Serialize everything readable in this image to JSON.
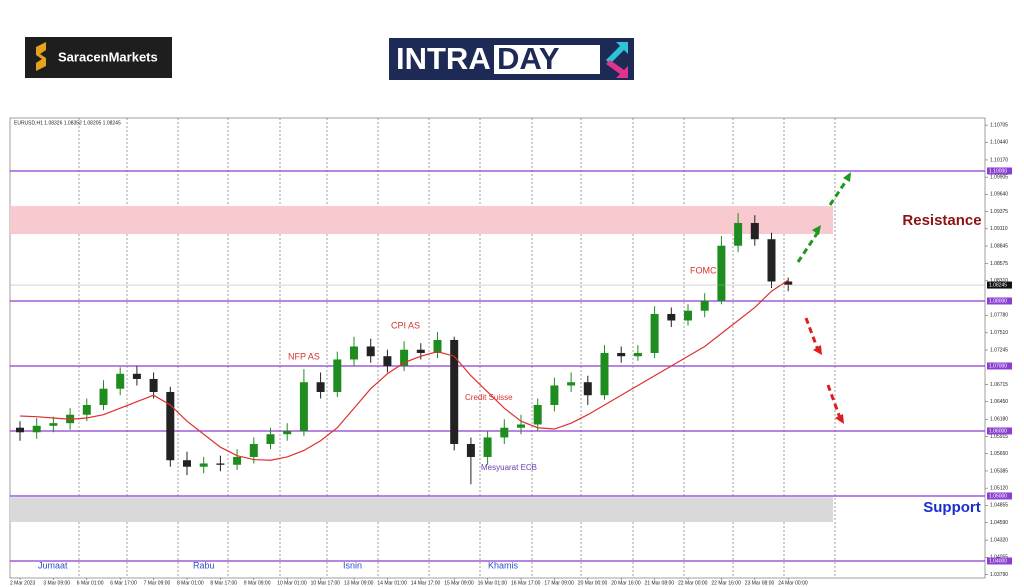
{
  "header": {
    "brand": "SaracenMarkets",
    "logo_part1": "INTRA",
    "logo_part2": "DAY"
  },
  "chart_data": {
    "type": "candlestick",
    "symbol_header": "EURUSD,H1 1.08326 1.08352 1.08205 1.08245",
    "categories": [
      "2 Mar 2023",
      null,
      "3 Mar 09:00",
      null,
      "6 Mar 01:00",
      null,
      "6 Mar 17:00",
      null,
      "7 Mar 09:00",
      null,
      "8 Mar 01:00",
      null,
      "8 Mar 17:00",
      null,
      "9 Mar 09:00",
      null,
      "10 Mar 01:00",
      null,
      "10 Mar 17:00",
      null,
      "13 Mar 09:00",
      null,
      "14 Mar 01:00",
      null,
      "14 Mar 17:00",
      null,
      "15 Mar 09:00",
      null,
      "16 Mar 01:00",
      null,
      "16 Mar 17:00",
      null,
      "17 Mar 09:00",
      null,
      "20 Mar 00:00",
      null,
      "20 Mar 16:00",
      null,
      "21 Mar 08:00",
      null,
      "22 Mar 00:00",
      null,
      "22 Mar 16:00",
      null,
      "23 Mar 08:00",
      null,
      "24 Mar 00:00"
    ],
    "open": [
      1.0605,
      1.0598,
      1.0608,
      1.0612,
      1.0625,
      1.064,
      1.0665,
      1.0688,
      1.068,
      1.066,
      1.0555,
      1.0545,
      1.055,
      1.0548,
      1.056,
      1.058,
      1.0595,
      1.06,
      1.0675,
      1.066,
      1.071,
      1.073,
      1.0715,
      1.07,
      1.0725,
      1.072,
      1.074,
      1.058,
      1.056,
      1.059,
      1.0605,
      1.061,
      1.064,
      1.067,
      1.0675,
      1.0655,
      1.072,
      1.0715,
      1.072,
      1.078,
      1.077,
      1.0785,
      1.08,
      1.0885,
      1.092,
      1.0895,
      1.083
    ],
    "high": [
      1.0615,
      1.062,
      1.0622,
      1.0635,
      1.065,
      1.0678,
      1.0698,
      1.07,
      1.069,
      1.0668,
      1.0568,
      1.056,
      1.0562,
      1.0572,
      1.059,
      1.0605,
      1.0612,
      1.0695,
      1.069,
      1.0722,
      1.0745,
      1.0742,
      1.0725,
      1.0738,
      1.0735,
      1.0752,
      1.0745,
      1.059,
      1.06,
      1.0618,
      1.0625,
      1.065,
      1.0682,
      1.069,
      1.0685,
      1.0732,
      1.073,
      1.0732,
      1.0792,
      1.079,
      1.0795,
      1.0812,
      1.09,
      1.0935,
      1.0932,
      1.0905,
      1.0836
    ],
    "low": [
      1.0585,
      1.0588,
      1.0598,
      1.0602,
      1.0615,
      1.0632,
      1.0655,
      1.067,
      1.065,
      1.0545,
      1.0532,
      1.0535,
      1.0538,
      1.054,
      1.055,
      1.0572,
      1.0585,
      1.0592,
      1.065,
      1.0652,
      1.07,
      1.0705,
      1.069,
      1.0692,
      1.071,
      1.0712,
      1.057,
      1.0518,
      1.0548,
      1.058,
      1.0595,
      1.06,
      1.063,
      1.066,
      1.064,
      1.0648,
      1.0705,
      1.0708,
      1.0712,
      1.076,
      1.0762,
      1.0775,
      1.0795,
      1.0875,
      1.0885,
      1.082,
      1.0815
    ],
    "close": [
      1.0598,
      1.0608,
      1.0612,
      1.0625,
      1.064,
      1.0665,
      1.0688,
      1.068,
      1.066,
      1.0555,
      1.0545,
      1.055,
      1.0548,
      1.056,
      1.058,
      1.0595,
      1.06,
      1.0675,
      1.066,
      1.071,
      1.073,
      1.0715,
      1.07,
      1.0725,
      1.072,
      1.074,
      1.058,
      1.056,
      1.059,
      1.0605,
      1.061,
      1.064,
      1.067,
      1.0675,
      1.0655,
      1.072,
      1.0715,
      1.072,
      1.078,
      1.077,
      1.0785,
      1.08,
      1.0885,
      1.092,
      1.0895,
      1.083,
      1.0825
    ],
    "up_color": "#1e8c1e",
    "down_color": "#222222",
    "moving_average": {
      "color": "#e03030",
      "values": [
        1.0623,
        1.0622,
        1.062,
        1.0618,
        1.062,
        1.0625,
        1.0635,
        1.0645,
        1.0655,
        1.064,
        1.0615,
        1.0595,
        1.0575,
        1.0562,
        1.0556,
        1.0555,
        1.056,
        1.057,
        1.0585,
        1.0605,
        1.0635,
        1.0665,
        1.0688,
        1.0705,
        1.0715,
        1.0722,
        1.0715,
        1.0685,
        1.066,
        1.0635,
        1.0615,
        1.0605,
        1.0603,
        1.0612,
        1.0625,
        1.064,
        1.0655,
        1.067,
        1.0685,
        1.07,
        1.0715,
        1.073,
        1.075,
        1.077,
        1.079,
        1.0815,
        1.0832
      ]
    },
    "ylim": [
      1.03738,
      1.10815
    ],
    "yticks": [
      {
        "value": 1.10705,
        "label": "1.10705"
      },
      {
        "value": 1.1044,
        "label": "1.10440"
      },
      {
        "value": 1.1017,
        "label": "1.10170"
      },
      {
        "value": 1.09905,
        "label": "1.09905"
      },
      {
        "value": 1.0964,
        "label": "1.09640"
      },
      {
        "value": 1.09375,
        "label": "1.09375"
      },
      {
        "value": 1.0911,
        "label": "1.09110"
      },
      {
        "value": 1.08845,
        "label": "1.08845"
      },
      {
        "value": 1.08575,
        "label": "1.08575"
      },
      {
        "value": 1.0831,
        "label": "1.08310"
      },
      {
        "value": 1.0778,
        "label": "1.07780"
      },
      {
        "value": 1.0751,
        "label": "1.07510"
      },
      {
        "value": 1.07245,
        "label": "1.07245"
      },
      {
        "value": 1.06715,
        "label": "1.06715"
      },
      {
        "value": 1.0645,
        "label": "1.06450"
      },
      {
        "value": 1.0618,
        "label": "1.06180"
      },
      {
        "value": 1.05915,
        "label": "1.05915"
      },
      {
        "value": 1.0565,
        "label": "1.05650"
      },
      {
        "value": 1.05385,
        "label": "1.05385"
      },
      {
        "value": 1.0512,
        "label": "1.05120"
      },
      {
        "value": 1.04855,
        "label": "1.04855"
      },
      {
        "value": 1.0459,
        "label": "1.04590"
      },
      {
        "value": 1.0432,
        "label": "1.04320"
      },
      {
        "value": 1.04055,
        "label": "1.04055"
      },
      {
        "value": 1.0379,
        "label": "1.03790"
      }
    ],
    "levels": [
      {
        "value": 1.1,
        "label": "1.10000"
      },
      {
        "value": 1.08,
        "label": "1.08000"
      },
      {
        "value": 1.07,
        "label": "1.07000"
      },
      {
        "value": 1.06,
        "label": "1.06000"
      },
      {
        "value": 1.05,
        "label": "1.05000"
      },
      {
        "value": 1.04,
        "label": "1.04000"
      }
    ],
    "level_color": "#8a3fd1",
    "current_price": {
      "value": 1.08245,
      "label": "1.08245"
    },
    "zones": [
      {
        "label": "Resistance",
        "ylim": [
          1.0903,
          1.0946
        ],
        "color": "#f9c9d0"
      },
      {
        "label": "Support",
        "ylim": [
          1.046,
          1.0498
        ],
        "color": "#d9d8da"
      }
    ],
    "annotations": [
      "NFP AS",
      "CPI AS",
      "Credit Suisse",
      "Mesyuarat ECB",
      "FOMC"
    ],
    "day_labels": [
      "Jumaat",
      "Rabu",
      "Isnin",
      "Khamis"
    ]
  }
}
